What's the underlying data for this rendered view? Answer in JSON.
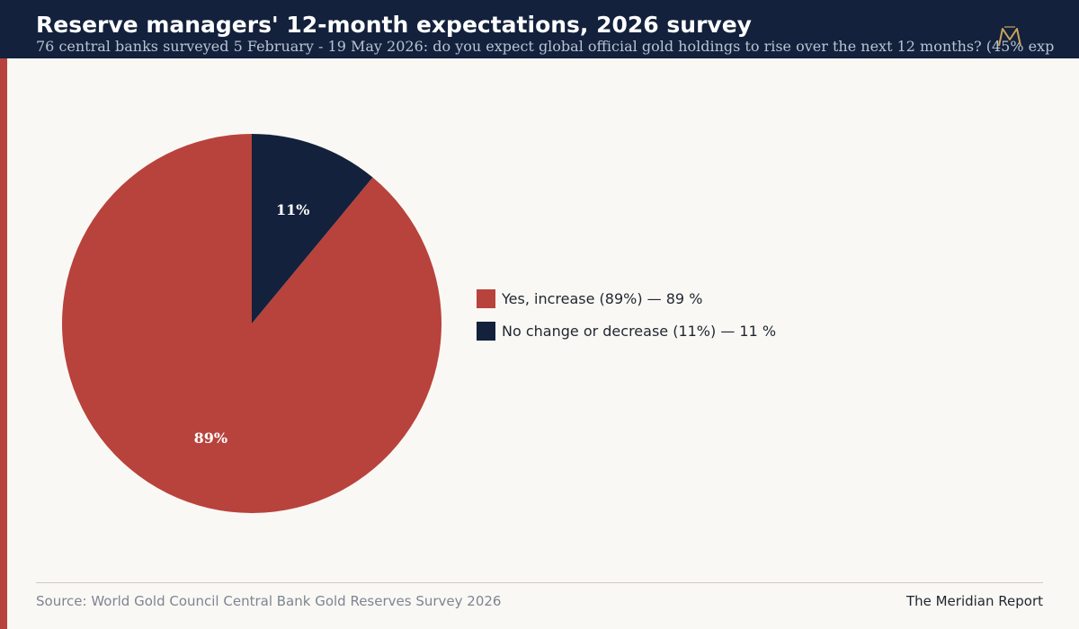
{
  "header": {
    "title": "Reserve managers' 12-month expectations, 2026 survey",
    "subtitle": "76 central banks surveyed 5 February - 19 May 2026: do you expect global official gold holdings to rise over the next 12 months? (45% exp"
  },
  "logo": {
    "icon": "meridian-monogram-logo",
    "letters": "M"
  },
  "chart_data": {
    "type": "pie",
    "slices": [
      {
        "label": "Yes, increase (89%)",
        "value": 89,
        "unit": "%",
        "display": "89%",
        "color": "#b8433c"
      },
      {
        "label": "No change or decrease (11%)",
        "value": 11,
        "unit": "%",
        "display": "11%",
        "color": "#13213c"
      }
    ],
    "legend_position": "right",
    "start": "top",
    "direction": "clockwise"
  },
  "footer": {
    "source": "Source: World Gold Council Central Bank Gold Reserves Survey 2026",
    "brand": "The Meridian Report"
  },
  "colors": {
    "accent": "#b8433c",
    "navy": "#13213c",
    "background": "#faf8f4"
  }
}
